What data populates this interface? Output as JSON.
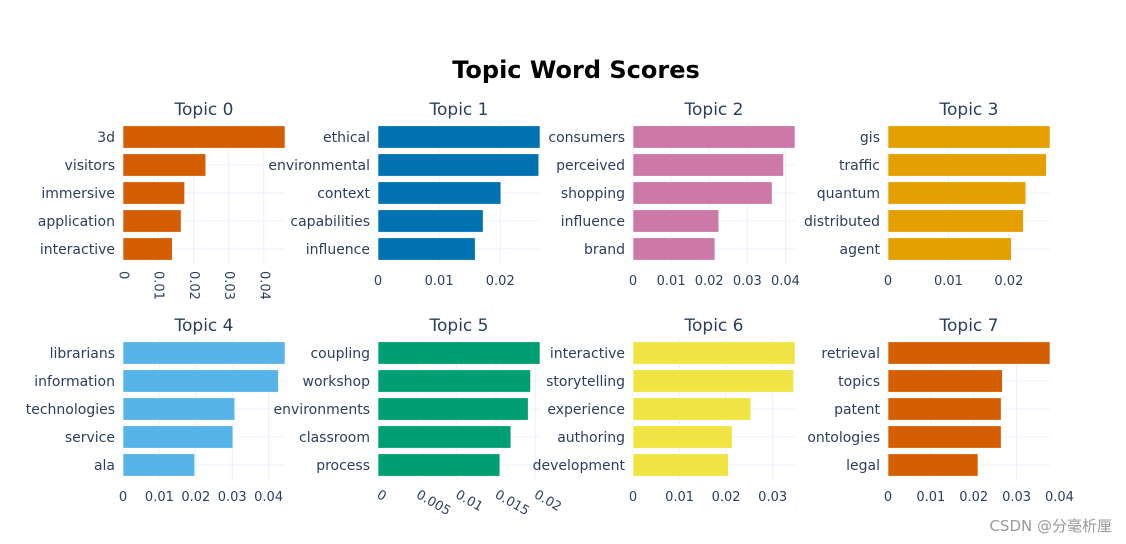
{
  "chart_data": {
    "type": "bar",
    "title": "Topic Word Scores",
    "orientation": "horizontal",
    "grid": true,
    "subplots": [
      {
        "title": "Topic 0",
        "color": "#D55E00",
        "xlim": [
          0,
          0.046
        ],
        "ticks": [
          "0",
          "0.01",
          "0.02",
          "0.03",
          "0.04"
        ],
        "tick_values": [
          0,
          0.01,
          0.02,
          0.03,
          0.04
        ],
        "tick_rotation": 90,
        "categories": [
          "3d",
          "visitors",
          "immersive",
          "application",
          "interactive"
        ],
        "values": [
          0.046,
          0.0235,
          0.0175,
          0.0165,
          0.014
        ]
      },
      {
        "title": "Topic 1",
        "color": "#0072B2",
        "xlim": [
          0,
          0.0265
        ],
        "ticks": [
          "0",
          "0.01",
          "0.02"
        ],
        "tick_values": [
          0,
          0.01,
          0.02
        ],
        "tick_rotation": 0,
        "categories": [
          "ethical",
          "environmental",
          "context",
          "capabilities",
          "influence"
        ],
        "values": [
          0.0265,
          0.0263,
          0.0201,
          0.0172,
          0.0159
        ]
      },
      {
        "title": "Topic 2",
        "color": "#CC79A7",
        "xlim": [
          0,
          0.0425
        ],
        "ticks": [
          "0",
          "0.01",
          "0.02",
          "0.03",
          "0.04"
        ],
        "tick_values": [
          0,
          0.01,
          0.02,
          0.03,
          0.04
        ],
        "tick_rotation": 0,
        "categories": [
          "consumers",
          "perceived",
          "shopping",
          "influence",
          "brand"
        ],
        "values": [
          0.0425,
          0.0395,
          0.0365,
          0.0225,
          0.0215
        ]
      },
      {
        "title": "Topic 3",
        "color": "#E69F00",
        "xlim": [
          0,
          0.0268
        ],
        "ticks": [
          "0",
          "0.01",
          "0.02"
        ],
        "tick_values": [
          0,
          0.01,
          0.02
        ],
        "tick_rotation": 0,
        "categories": [
          "gis",
          "traffic",
          "quantum",
          "distributed",
          "agent"
        ],
        "values": [
          0.0268,
          0.0262,
          0.0228,
          0.0224,
          0.0204
        ]
      },
      {
        "title": "Topic 4",
        "color": "#56B4E9",
        "xlim": [
          0,
          0.0445
        ],
        "ticks": [
          "0",
          "0.01",
          "0.02",
          "0.03",
          "0.04"
        ],
        "tick_values": [
          0,
          0.01,
          0.02,
          0.03,
          0.04
        ],
        "tick_rotation": 0,
        "categories": [
          "librarians",
          "information",
          "technologies",
          "service",
          "ala"
        ],
        "values": [
          0.0445,
          0.0427,
          0.0307,
          0.0302,
          0.0197
        ]
      },
      {
        "title": "Topic 5",
        "color": "#009E73",
        "xlim": [
          0,
          0.0206
        ],
        "ticks": [
          "0",
          "0.005",
          "0.01",
          "0.015",
          "0.02"
        ],
        "tick_values": [
          0,
          0.005,
          0.01,
          0.015,
          0.02
        ],
        "tick_rotation": 30,
        "categories": [
          "coupling",
          "workshop",
          "environments",
          "classroom",
          "process"
        ],
        "values": [
          0.0206,
          0.0194,
          0.0191,
          0.0169,
          0.0155
        ]
      },
      {
        "title": "Topic 6",
        "color": "#F0E442",
        "xlim": [
          0,
          0.0348
        ],
        "ticks": [
          "0",
          "0.01",
          "0.02",
          "0.03"
        ],
        "tick_values": [
          0,
          0.01,
          0.02,
          0.03
        ],
        "tick_rotation": 0,
        "categories": [
          "interactive",
          "storytelling",
          "experience",
          "authoring",
          "development"
        ],
        "values": [
          0.0348,
          0.0345,
          0.0253,
          0.0213,
          0.0205
        ]
      },
      {
        "title": "Topic 7",
        "color": "#D55E00",
        "xlim": [
          0,
          0.0378
        ],
        "ticks": [
          "0",
          "0.01",
          "0.02",
          "0.03",
          "0.04"
        ],
        "tick_values": [
          0,
          0.01,
          0.02,
          0.03,
          0.04
        ],
        "tick_rotation": 0,
        "categories": [
          "retrieval",
          "topics",
          "patent",
          "ontologies",
          "legal"
        ],
        "values": [
          0.0378,
          0.0267,
          0.0264,
          0.0264,
          0.021
        ]
      }
    ]
  },
  "watermark": "CSDN @分毫析厘"
}
